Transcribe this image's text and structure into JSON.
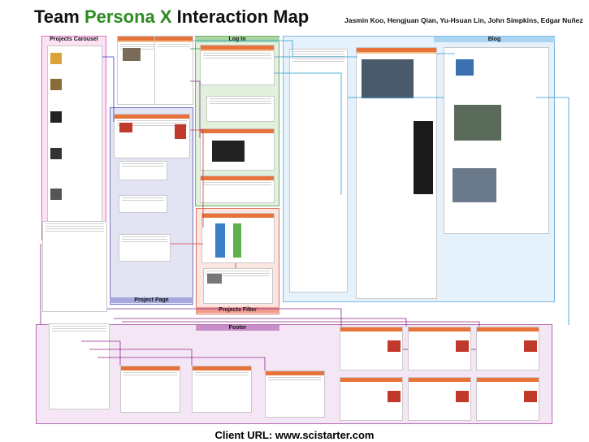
{
  "header": {
    "title_prefix": "Team ",
    "title_accent": "Persona X",
    "title_suffix": " Interaction Map",
    "authors": "Jasmin Koo, Hengjuan Qian, Yu-Hsuan Lin, John Simpkins, Edgar Nuñez"
  },
  "regions": {
    "projects_carousel": "Projects Carousel",
    "log_in": "Log In",
    "blog": "Blog",
    "project_page": "Project Page",
    "projects_filter": "Projects Filter",
    "footer": "Footer"
  },
  "footer": {
    "url": "Client URL: www.scistarter.com"
  },
  "colors": {
    "title_accent": "#2e8b22",
    "carousel_fill": "#fbe3f3",
    "carousel_border": "#e06fc4",
    "login_fill": "#e2f1de",
    "login_border": "#6fb06a",
    "blog_fill": "#e5f1fb",
    "blog_border": "#7fb8e3",
    "project_fill": "#e3e4f3",
    "project_border": "#7476c1",
    "filter_fill": "#fbe6e2",
    "filter_border": "#e0705c",
    "footer_fill": "#f5e6f5",
    "footer_border": "#b46cb4",
    "scistarter_orange": "#e8733a"
  }
}
